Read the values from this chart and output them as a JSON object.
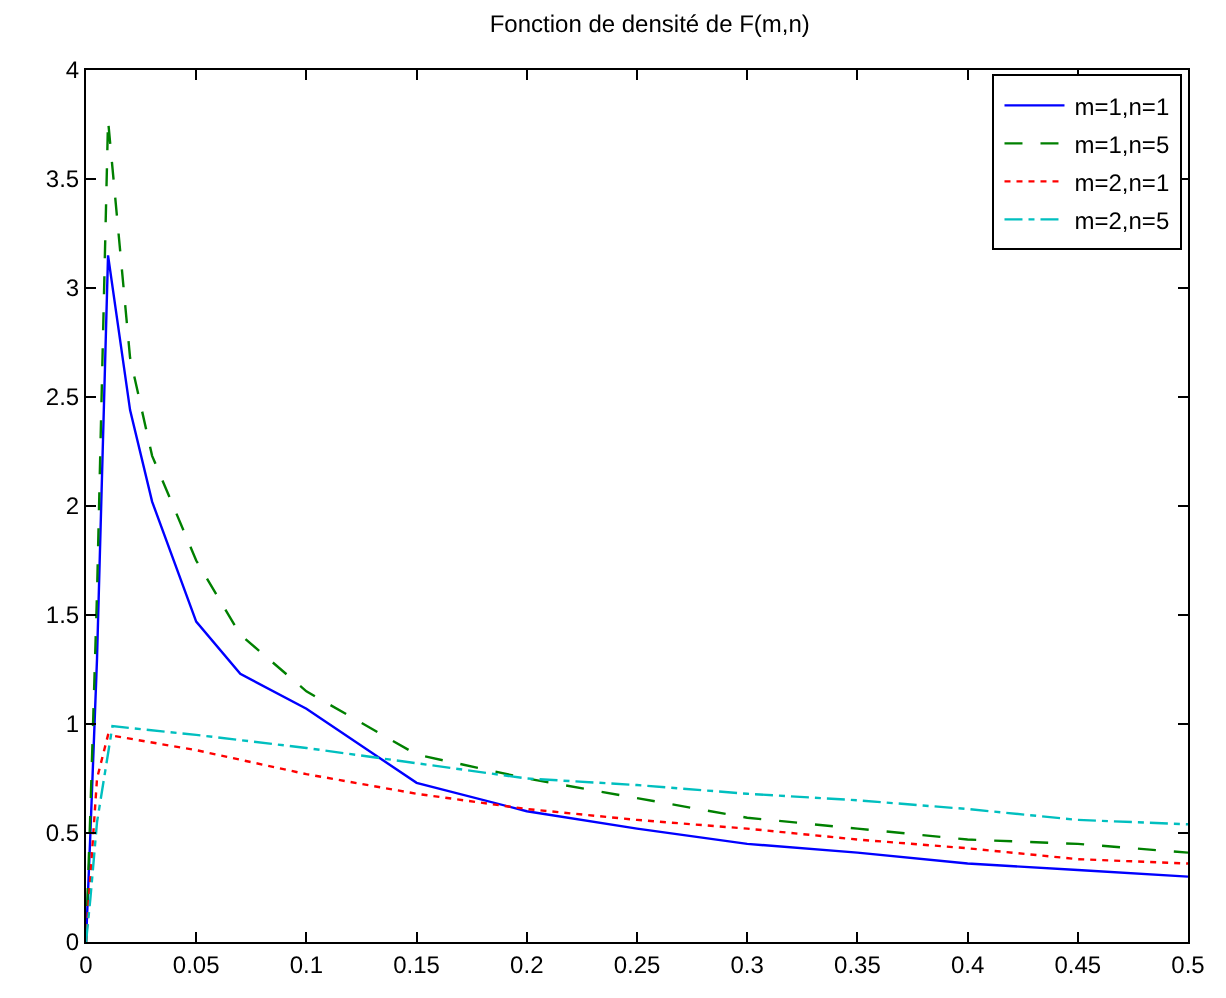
{
  "chart_data": {
    "type": "line",
    "title": "Fonction de densité de F(m,n)",
    "xlim": [
      0,
      0.5
    ],
    "xticks": [
      0,
      0.05,
      0.1,
      0.15,
      0.2,
      0.25,
      0.3,
      0.35,
      0.4,
      0.45,
      0.5
    ],
    "ylim": [
      0,
      4
    ],
    "yticks": [
      0,
      0.5,
      1,
      1.5,
      2,
      2.5,
      3,
      3.5,
      4
    ],
    "legend": "top right",
    "series": [
      {
        "name": "m=1,n=1",
        "color": "#0000ff",
        "line_style": "solid",
        "x": [
          0,
          0.002,
          0.005,
          0.01,
          0.02,
          0.03,
          0.05,
          0.07,
          0.1,
          0.15,
          0.2,
          0.25,
          0.3,
          0.35,
          0.4,
          0.45,
          0.5
        ],
        "values": [
          0,
          0.5,
          1.3,
          3.15,
          2.44,
          2.02,
          1.47,
          1.23,
          1.07,
          0.73,
          0.6,
          0.52,
          0.45,
          0.41,
          0.36,
          0.33,
          0.3
        ]
      },
      {
        "name": "m=1,n=5",
        "color": "#008000",
        "line_style": "dashed",
        "x": [
          0,
          0.002,
          0.005,
          0.01,
          0.02,
          0.03,
          0.05,
          0.07,
          0.1,
          0.15,
          0.2,
          0.25,
          0.3,
          0.35,
          0.4,
          0.45,
          0.5
        ],
        "values": [
          0,
          0.6,
          1.6,
          3.77,
          2.68,
          2.23,
          1.75,
          1.41,
          1.15,
          0.86,
          0.75,
          0.66,
          0.57,
          0.52,
          0.47,
          0.45,
          0.41
        ]
      },
      {
        "name": "m=2,n=1",
        "color": "#ff0000",
        "line_style": "dotted",
        "x": [
          0,
          0.002,
          0.005,
          0.01,
          0.05,
          0.1,
          0.15,
          0.2,
          0.25,
          0.3,
          0.35,
          0.4,
          0.45,
          0.5
        ],
        "values": [
          0,
          0.3,
          0.75,
          0.95,
          0.88,
          0.77,
          0.68,
          0.61,
          0.56,
          0.52,
          0.47,
          0.43,
          0.38,
          0.36
        ]
      },
      {
        "name": "m=2,n=5",
        "color": "#00bfbf",
        "line_style": "dashdot",
        "x": [
          0,
          0.002,
          0.005,
          0.012,
          0.05,
          0.1,
          0.15,
          0.2,
          0.25,
          0.3,
          0.35,
          0.4,
          0.45,
          0.5
        ],
        "values": [
          0,
          0.2,
          0.55,
          0.99,
          0.95,
          0.89,
          0.82,
          0.75,
          0.72,
          0.68,
          0.65,
          0.61,
          0.56,
          0.54
        ]
      }
    ]
  }
}
